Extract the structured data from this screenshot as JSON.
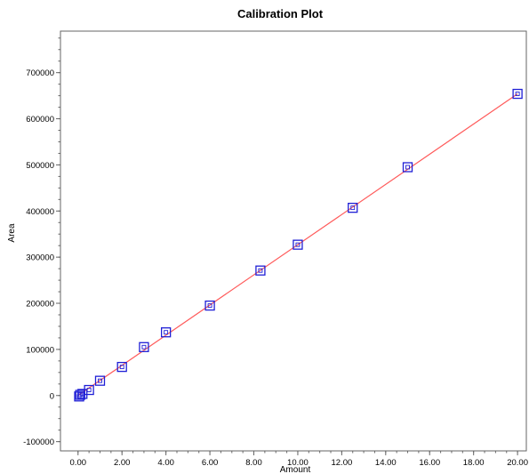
{
  "chart_data": {
    "type": "scatter",
    "title": "Calibration Plot",
    "xlabel": "Amount",
    "ylabel": "Area",
    "xlim": [
      -0.8,
      20.4
    ],
    "ylim": [
      -120000,
      790000
    ],
    "x_ticks": [
      0,
      2,
      4,
      6,
      8,
      10,
      12,
      14,
      16,
      18,
      20
    ],
    "x_tick_labels": [
      "0.00",
      "2.00",
      "4.00",
      "6.00",
      "8.00",
      "10.00",
      "12.00",
      "14.00",
      "16.00",
      "18.00",
      "20.00"
    ],
    "y_ticks": [
      -100000,
      0,
      100000,
      200000,
      300000,
      400000,
      500000,
      600000,
      700000
    ],
    "y_tick_labels": [
      "-100000",
      "0",
      "100000",
      "200000",
      "300000",
      "400000",
      "500000",
      "600000",
      "700000"
    ],
    "grid": false,
    "series": [
      {
        "marker": "square",
        "color": "#1f1fd6",
        "points": [
          {
            "x": 0.05,
            "y": -2000
          },
          {
            "x": 0.1,
            "y": 1500
          },
          {
            "x": 0.2,
            "y": 3500
          },
          {
            "x": 0.5,
            "y": 12000
          },
          {
            "x": 1.0,
            "y": 32000
          },
          {
            "x": 2.0,
            "y": 62000
          },
          {
            "x": 3.0,
            "y": 105000
          },
          {
            "x": 4.0,
            "y": 137000
          },
          {
            "x": 6.0,
            "y": 195000
          },
          {
            "x": 8.3,
            "y": 271000
          },
          {
            "x": 10.0,
            "y": 327000
          },
          {
            "x": 12.5,
            "y": 407000
          },
          {
            "x": 15.0,
            "y": 495000
          },
          {
            "x": 20.0,
            "y": 654000
          }
        ]
      }
    ],
    "fit_line": {
      "color": "#ff5a5a",
      "x_start": 0,
      "x_end": 20,
      "y_start": 0,
      "y_end": 654000
    }
  }
}
